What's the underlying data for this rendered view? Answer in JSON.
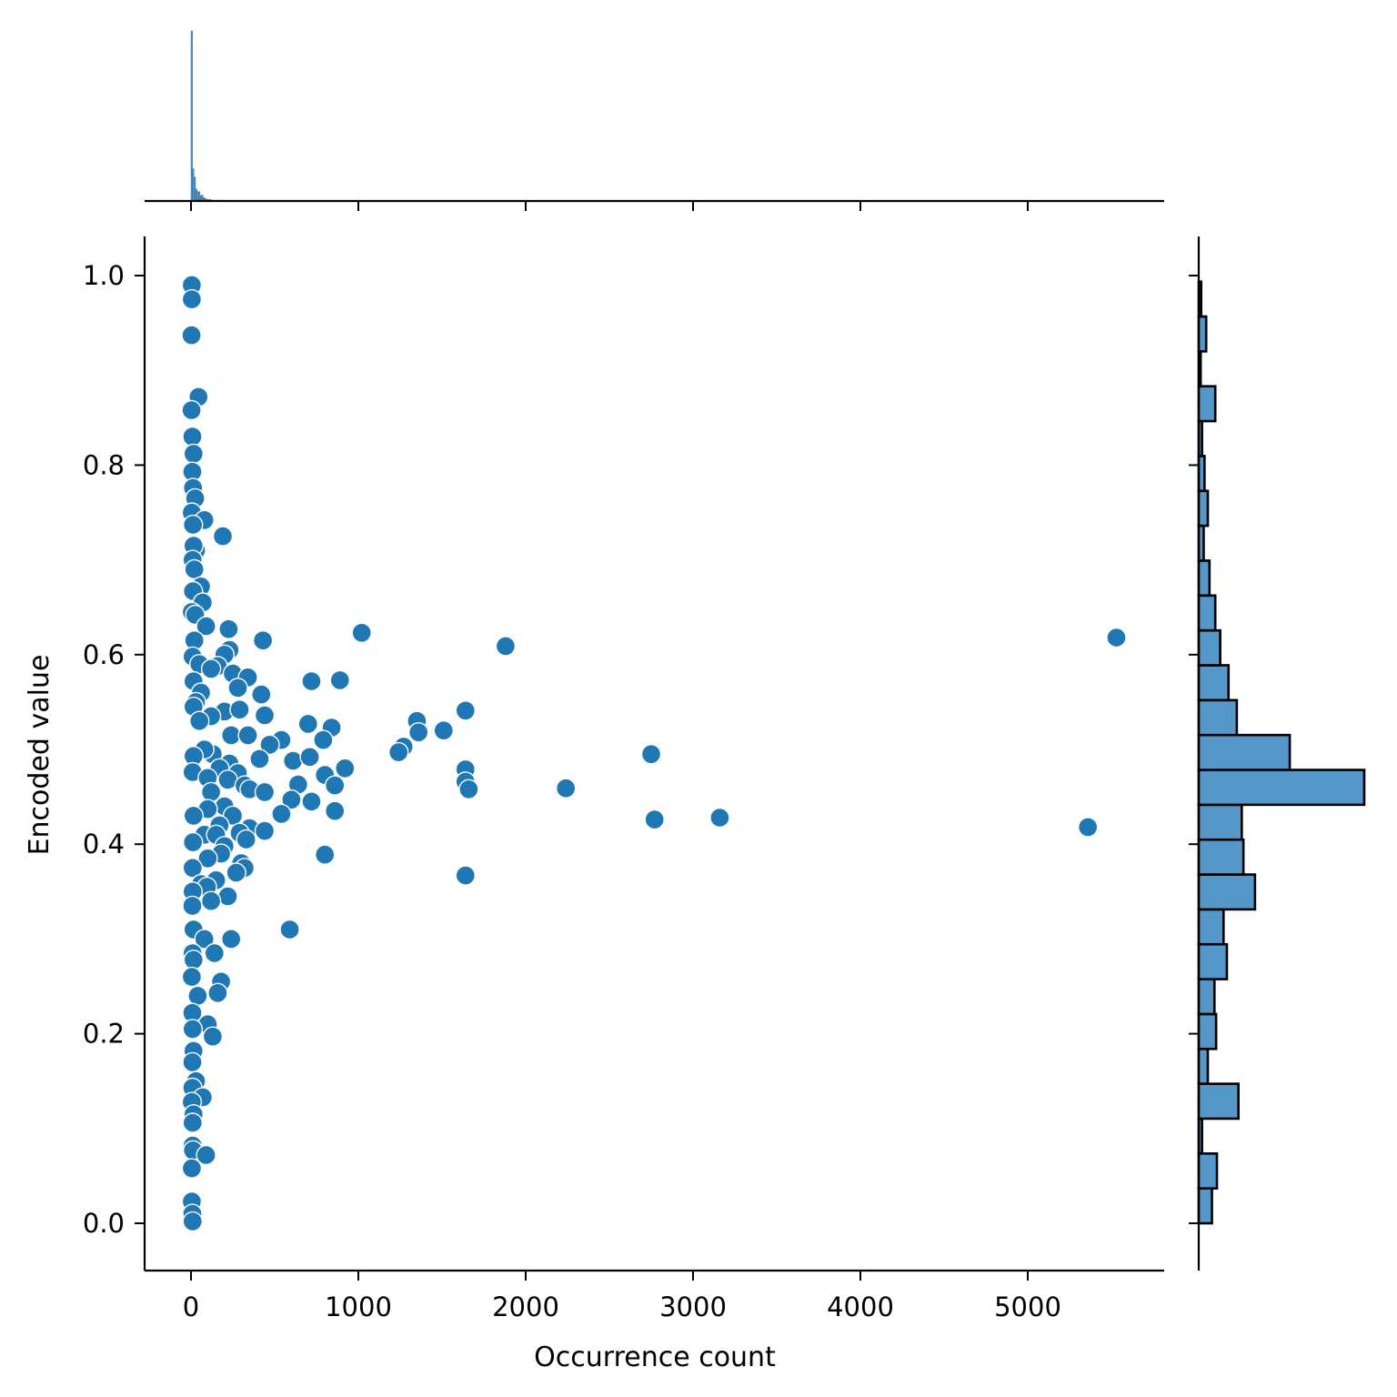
{
  "chart_data": {
    "type": "scatter",
    "title": "",
    "xlabel": "Occurrence count",
    "ylabel": "Encoded value",
    "xlim": [
      -280,
      5800
    ],
    "ylim": [
      -0.05,
      1.04
    ],
    "x_ticks": [
      0,
      1000,
      2000,
      3000,
      4000,
      5000
    ],
    "x_tick_labels": [
      "0",
      "1000",
      "2000",
      "3000",
      "4000",
      "5000"
    ],
    "y_ticks": [
      0.0,
      0.2,
      0.4,
      0.6,
      0.8,
      1.0
    ],
    "y_tick_labels": [
      "0.0",
      "0.2",
      "0.4",
      "0.6",
      "0.8",
      "1.0"
    ],
    "grid": false,
    "legend": null,
    "marker_color": "#1f77b4",
    "hist_color": "#5497c8",
    "layout": "jointplot with marginal histograms (top: x, right: y)",
    "series": [
      {
        "name": "points",
        "points": [
          [
            5,
            0.99
          ],
          [
            5,
            0.975
          ],
          [
            3,
            0.937
          ],
          [
            45,
            0.872
          ],
          [
            3,
            0.858
          ],
          [
            8,
            0.83
          ],
          [
            15,
            0.812
          ],
          [
            8,
            0.793
          ],
          [
            12,
            0.776
          ],
          [
            25,
            0.765
          ],
          [
            5,
            0.75
          ],
          [
            80,
            0.742
          ],
          [
            12,
            0.737
          ],
          [
            190,
            0.725
          ],
          [
            30,
            0.71
          ],
          [
            15,
            0.715
          ],
          [
            10,
            0.7
          ],
          [
            20,
            0.69
          ],
          [
            60,
            0.672
          ],
          [
            12,
            0.667
          ],
          [
            70,
            0.655
          ],
          [
            5,
            0.645
          ],
          [
            25,
            0.642
          ],
          [
            90,
            0.63
          ],
          [
            225,
            0.627
          ],
          [
            430,
            0.615
          ],
          [
            1020,
            0.623
          ],
          [
            5530,
            0.618
          ],
          [
            20,
            0.615
          ],
          [
            1880,
            0.609
          ],
          [
            10,
            0.598
          ],
          [
            230,
            0.605
          ],
          [
            200,
            0.6
          ],
          [
            160,
            0.588
          ],
          [
            50,
            0.59
          ],
          [
            120,
            0.585
          ],
          [
            250,
            0.58
          ],
          [
            340,
            0.576
          ],
          [
            720,
            0.572
          ],
          [
            890,
            0.573
          ],
          [
            15,
            0.572
          ],
          [
            280,
            0.565
          ],
          [
            420,
            0.558
          ],
          [
            60,
            0.56
          ],
          [
            30,
            0.55
          ],
          [
            15,
            0.545
          ],
          [
            1640,
            0.541
          ],
          [
            200,
            0.54
          ],
          [
            290,
            0.542
          ],
          [
            440,
            0.536
          ],
          [
            120,
            0.535
          ],
          [
            50,
            0.53
          ],
          [
            1350,
            0.53
          ],
          [
            700,
            0.527
          ],
          [
            840,
            0.523
          ],
          [
            1510,
            0.52
          ],
          [
            1360,
            0.518
          ],
          [
            240,
            0.515
          ],
          [
            340,
            0.515
          ],
          [
            540,
            0.51
          ],
          [
            790,
            0.51
          ],
          [
            470,
            0.505
          ],
          [
            1270,
            0.503
          ],
          [
            1240,
            0.497
          ],
          [
            130,
            0.495
          ],
          [
            2750,
            0.495
          ],
          [
            80,
            0.5
          ],
          [
            15,
            0.493
          ],
          [
            410,
            0.49
          ],
          [
            610,
            0.488
          ],
          [
            710,
            0.492
          ],
          [
            230,
            0.485
          ],
          [
            170,
            0.48
          ],
          [
            920,
            0.48
          ],
          [
            1640,
            0.479
          ],
          [
            10,
            0.476
          ],
          [
            100,
            0.47
          ],
          [
            800,
            0.473
          ],
          [
            280,
            0.475
          ],
          [
            220,
            0.468
          ],
          [
            1640,
            0.466
          ],
          [
            640,
            0.463
          ],
          [
            860,
            0.462
          ],
          [
            2240,
            0.459
          ],
          [
            1660,
            0.458
          ],
          [
            320,
            0.462
          ],
          [
            350,
            0.458
          ],
          [
            440,
            0.455
          ],
          [
            120,
            0.455
          ],
          [
            600,
            0.447
          ],
          [
            720,
            0.445
          ],
          [
            200,
            0.44
          ],
          [
            860,
            0.435
          ],
          [
            100,
            0.437
          ],
          [
            540,
            0.432
          ],
          [
            250,
            0.43
          ],
          [
            15,
            0.43
          ],
          [
            3160,
            0.428
          ],
          [
            2770,
            0.426
          ],
          [
            170,
            0.42
          ],
          [
            5360,
            0.418
          ],
          [
            350,
            0.417
          ],
          [
            440,
            0.414
          ],
          [
            290,
            0.412
          ],
          [
            80,
            0.41
          ],
          [
            150,
            0.41
          ],
          [
            330,
            0.405
          ],
          [
            12,
            0.402
          ],
          [
            200,
            0.398
          ],
          [
            800,
            0.389
          ],
          [
            180,
            0.39
          ],
          [
            300,
            0.38
          ],
          [
            100,
            0.385
          ],
          [
            320,
            0.375
          ],
          [
            10,
            0.375
          ],
          [
            270,
            0.37
          ],
          [
            1640,
            0.367
          ],
          [
            150,
            0.362
          ],
          [
            60,
            0.358
          ],
          [
            95,
            0.355
          ],
          [
            10,
            0.35
          ],
          [
            220,
            0.345
          ],
          [
            120,
            0.34
          ],
          [
            8,
            0.335
          ],
          [
            590,
            0.31
          ],
          [
            15,
            0.31
          ],
          [
            80,
            0.3
          ],
          [
            240,
            0.3
          ],
          [
            140,
            0.285
          ],
          [
            10,
            0.285
          ],
          [
            15,
            0.278
          ],
          [
            5,
            0.26
          ],
          [
            180,
            0.255
          ],
          [
            160,
            0.243
          ],
          [
            40,
            0.24
          ],
          [
            8,
            0.222
          ],
          [
            100,
            0.21
          ],
          [
            10,
            0.205
          ],
          [
            130,
            0.197
          ],
          [
            15,
            0.182
          ],
          [
            8,
            0.17
          ],
          [
            30,
            0.15
          ],
          [
            8,
            0.143
          ],
          [
            70,
            0.133
          ],
          [
            5,
            0.128
          ],
          [
            15,
            0.115
          ],
          [
            10,
            0.106
          ],
          [
            10,
            0.082
          ],
          [
            12,
            0.077
          ],
          [
            90,
            0.072
          ],
          [
            5,
            0.058
          ],
          [
            5,
            0.023
          ],
          [
            8,
            0.01
          ],
          [
            10,
            0.002
          ]
        ]
      }
    ],
    "marginal_x_histogram": {
      "description": "heavily right-skewed; tall spike at ~0-10, rapid decay by ~300",
      "bin_width_approx": 9,
      "relative_heights": [
        1.0,
        0.19,
        0.14,
        0.07,
        0.055,
        0.055,
        0.03,
        0.035,
        0.02,
        0.015,
        0.01,
        0.008,
        0.01,
        0.006,
        0.005,
        0.004,
        0.004,
        0.003,
        0.006,
        0.002,
        0.002,
        0.004,
        0.002,
        0.002,
        0.001,
        0.001,
        0.002,
        0.001
      ]
    },
    "marginal_y_histogram": {
      "bin_edges_start": 0.0,
      "bin_width": 0.0368,
      "counts_relative_from_bottom": [
        0.08,
        0.11,
        0.02,
        0.24,
        0.055,
        0.105,
        0.095,
        0.17,
        0.15,
        0.34,
        0.27,
        0.26,
        1.0,
        0.55,
        0.23,
        0.18,
        0.13,
        0.1,
        0.065,
        0.03,
        0.055,
        0.035,
        0.02,
        0.1,
        0.012,
        0.045,
        0.015
      ]
    }
  }
}
